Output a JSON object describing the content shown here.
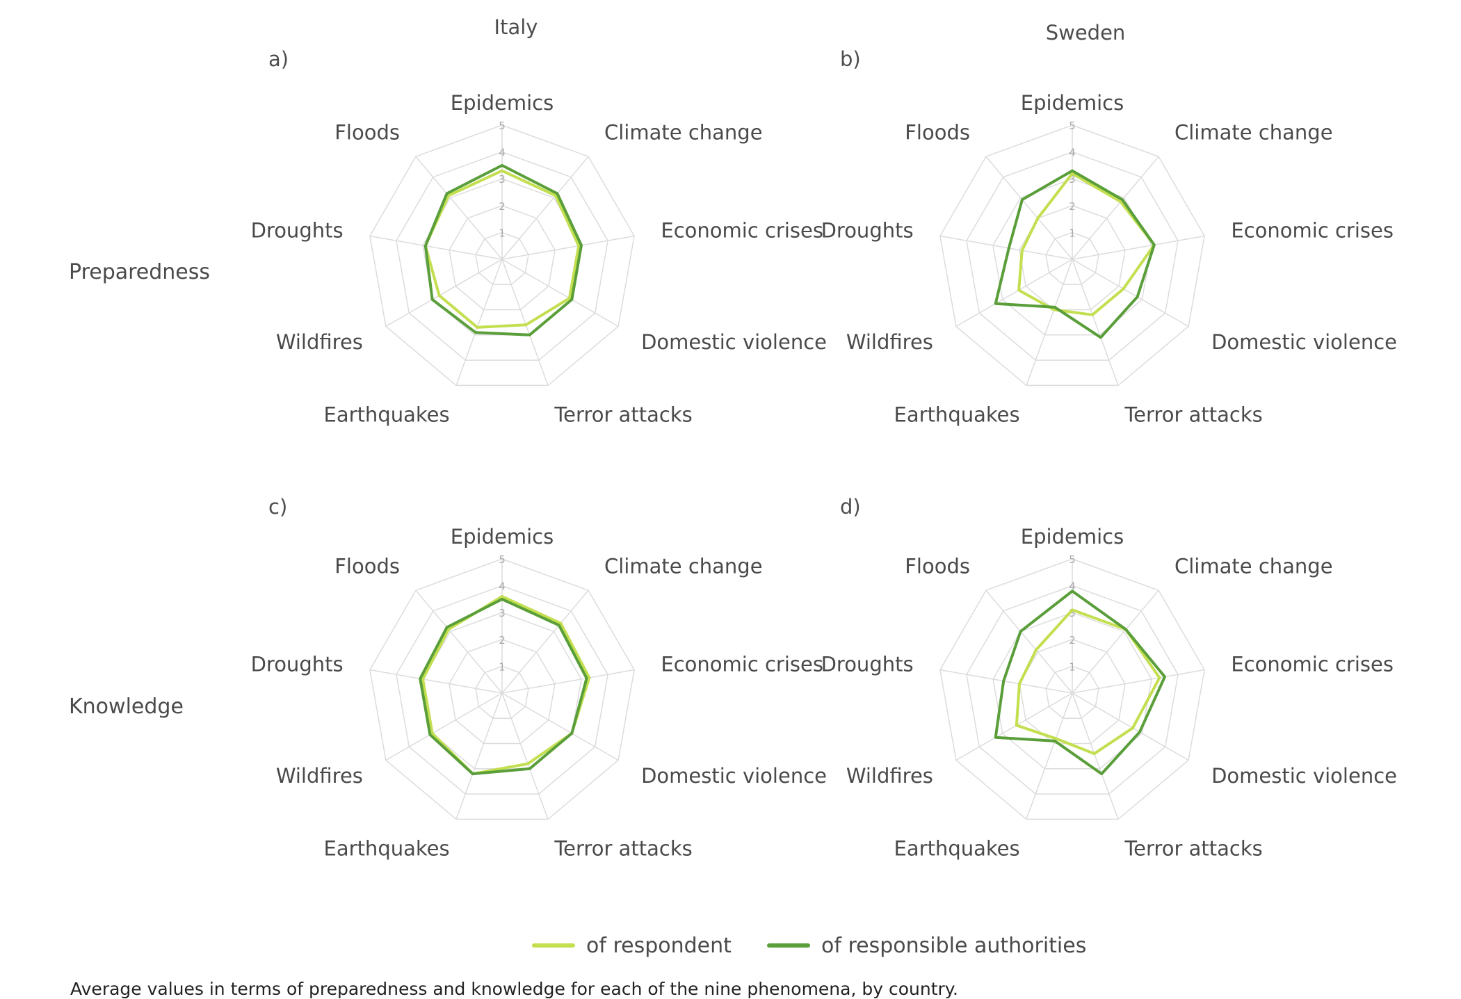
{
  "columns": [
    {
      "name": "Italy"
    },
    {
      "name": "Sweden"
    }
  ],
  "rows": [
    {
      "name": "Preparedness"
    },
    {
      "name": "Knowledge"
    }
  ],
  "panels": [
    {
      "letter": "a)"
    },
    {
      "letter": "b)"
    },
    {
      "letter": "c)"
    },
    {
      "letter": "d)"
    }
  ],
  "legend": [
    {
      "label": "of respondent",
      "color": "#c3df50"
    },
    {
      "label": "of responsible authorities",
      "color": "#5a9e3a"
    }
  ],
  "caption": "Average values in terms of preparedness and knowledge for each of the nine phenomena, by country.",
  "colors": {
    "respondent": "#c3df50",
    "authorities": "#5a9e3a",
    "grid": "#dcdcdc"
  },
  "chart_data": [
    {
      "type": "radar",
      "panel": "a)",
      "country": "Italy",
      "measure": "Preparedness",
      "axes": [
        "Epidemics",
        "Climate change",
        "Economic crises",
        "Domestic violence",
        "Terror attacks",
        "Earthquakes",
        "Wildfires",
        "Droughts",
        "Floods"
      ],
      "rlim": [
        0,
        5
      ],
      "ticks": [
        1,
        2,
        3,
        4,
        5
      ],
      "series": [
        {
          "name": "of respondent",
          "values": [
            3.3,
            3.1,
            2.9,
            2.9,
            2.6,
            2.7,
            2.7,
            2.9,
            3.1
          ]
        },
        {
          "name": "of responsible authorities",
          "values": [
            3.5,
            3.2,
            3.0,
            3.0,
            3.0,
            2.9,
            3.0,
            2.9,
            3.2
          ]
        }
      ]
    },
    {
      "type": "radar",
      "panel": "b)",
      "country": "Sweden",
      "measure": "Preparedness",
      "axes": [
        "Epidemics",
        "Climate change",
        "Economic crises",
        "Domestic violence",
        "Terror attacks",
        "Earthquakes",
        "Wildfires",
        "Droughts",
        "Floods"
      ],
      "rlim": [
        0,
        5
      ],
      "ticks": [
        1,
        2,
        3,
        4,
        5
      ],
      "series": [
        {
          "name": "of respondent",
          "values": [
            3.2,
            2.8,
            3.1,
            2.2,
            2.2,
            2.0,
            2.3,
            1.9,
            2.0
          ]
        },
        {
          "name": "of responsible authorities",
          "values": [
            3.3,
            2.9,
            3.1,
            2.8,
            3.1,
            1.9,
            3.3,
            2.4,
            2.9
          ]
        }
      ]
    },
    {
      "type": "radar",
      "panel": "c)",
      "country": "Italy",
      "measure": "Knowledge",
      "axes": [
        "Epidemics",
        "Climate change",
        "Economic crises",
        "Domestic violence",
        "Terror attacks",
        "Earthquakes",
        "Wildfires",
        "Droughts",
        "Floods"
      ],
      "rlim": [
        0,
        5
      ],
      "ticks": [
        1,
        2,
        3,
        4,
        5
      ],
      "series": [
        {
          "name": "of respondent",
          "values": [
            3.6,
            3.4,
            3.3,
            3.0,
            2.8,
            3.2,
            3.0,
            3.0,
            3.1
          ]
        },
        {
          "name": "of responsible authorities",
          "values": [
            3.5,
            3.3,
            3.2,
            3.0,
            3.0,
            3.2,
            3.1,
            3.1,
            3.2
          ]
        }
      ]
    },
    {
      "type": "radar",
      "panel": "d)",
      "country": "Sweden",
      "measure": "Knowledge",
      "axes": [
        "Epidemics",
        "Climate change",
        "Economic crises",
        "Domestic violence",
        "Terror attacks",
        "Earthquakes",
        "Wildfires",
        "Droughts",
        "Floods"
      ],
      "rlim": [
        0,
        5
      ],
      "ticks": [
        1,
        2,
        3,
        4,
        5
      ],
      "series": [
        {
          "name": "of respondent",
          "values": [
            3.1,
            3.1,
            3.3,
            2.6,
            2.4,
            1.8,
            2.4,
            2.0,
            2.1
          ]
        },
        {
          "name": "of responsible authorities",
          "values": [
            3.8,
            3.1,
            3.5,
            2.9,
            3.2,
            1.9,
            3.3,
            2.6,
            3.0
          ]
        }
      ]
    }
  ]
}
